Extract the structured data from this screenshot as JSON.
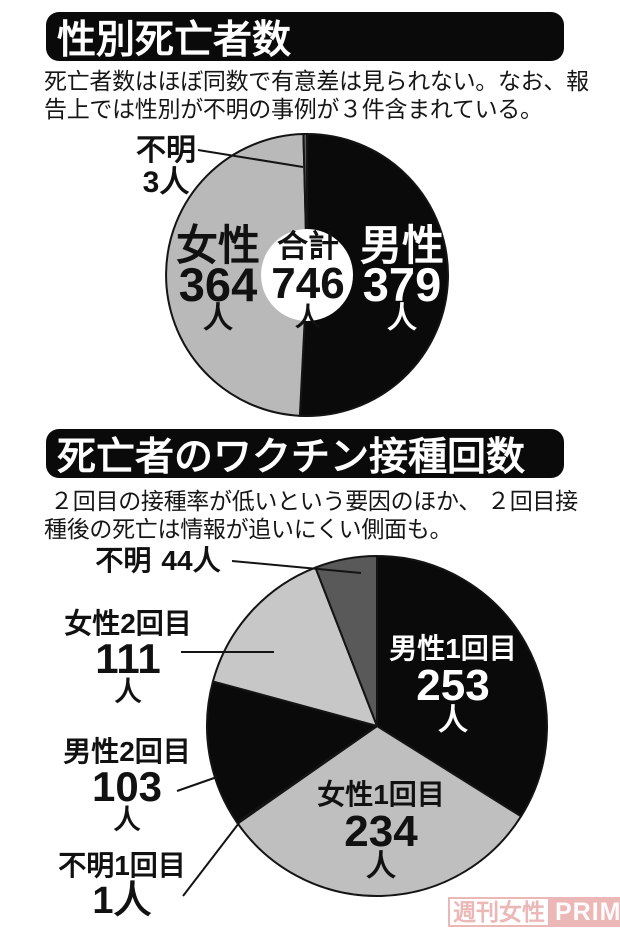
{
  "section1": {
    "title": "性別死亡者数",
    "description": "死亡者数はほぼ同数で有意差は見られない。なお、報告上では性別が不明の事例が３件含まれている。"
  },
  "section2": {
    "title": "死亡者のワクチン接種回数",
    "description": " ２回目の接種率が低いという要因のほか、 ２回目接種後の死亡は情報が追いにくい側面も。"
  },
  "chart_data": [
    {
      "type": "pie",
      "title": "性別死亡者数",
      "total": 746,
      "start_angle_deg": 0,
      "direction": "clockwise",
      "donut": true,
      "center": {
        "label": "合計",
        "value": 746,
        "unit": "人"
      },
      "slices": [
        {
          "label": "男性",
          "value": 379,
          "unit": "人",
          "color": "#0a0a0a",
          "text_color": "#ffffff"
        },
        {
          "label": "女性",
          "value": 364,
          "unit": "人",
          "color": "#b9b9b9",
          "text_color": "#111111"
        },
        {
          "label": "不明",
          "value": 3,
          "unit": "人",
          "color": "#5f5f5f",
          "text_color": "#111111"
        }
      ]
    },
    {
      "type": "pie",
      "title": "死亡者のワクチン接種回数",
      "total": 746,
      "start_angle_deg": 0,
      "direction": "clockwise",
      "donut": false,
      "slices": [
        {
          "label": "男性1回目",
          "value": 253,
          "unit": "人",
          "color": "#0a0a0a",
          "text_color": "#ffffff"
        },
        {
          "label": "女性1回目",
          "value": 234,
          "unit": "人",
          "color": "#bfbfbf",
          "text_color": "#111111"
        },
        {
          "label": "不明1回目",
          "value": 1,
          "unit": "人",
          "color": "#9a9a9a",
          "text_color": "#111111"
        },
        {
          "label": "男性2回目",
          "value": 103,
          "unit": "人",
          "color": "#0a0a0a",
          "text_color": "#111111"
        },
        {
          "label": "女性2回目",
          "value": 111,
          "unit": "人",
          "color": "#c7c7c7",
          "text_color": "#111111"
        },
        {
          "label": "不明",
          "value": 44,
          "unit": "人",
          "color": "#595959",
          "text_color": "#111111"
        }
      ]
    }
  ],
  "watermark": {
    "magazine": "週刊女性",
    "brand": "PRIME",
    "color": "#e9a8a8"
  }
}
